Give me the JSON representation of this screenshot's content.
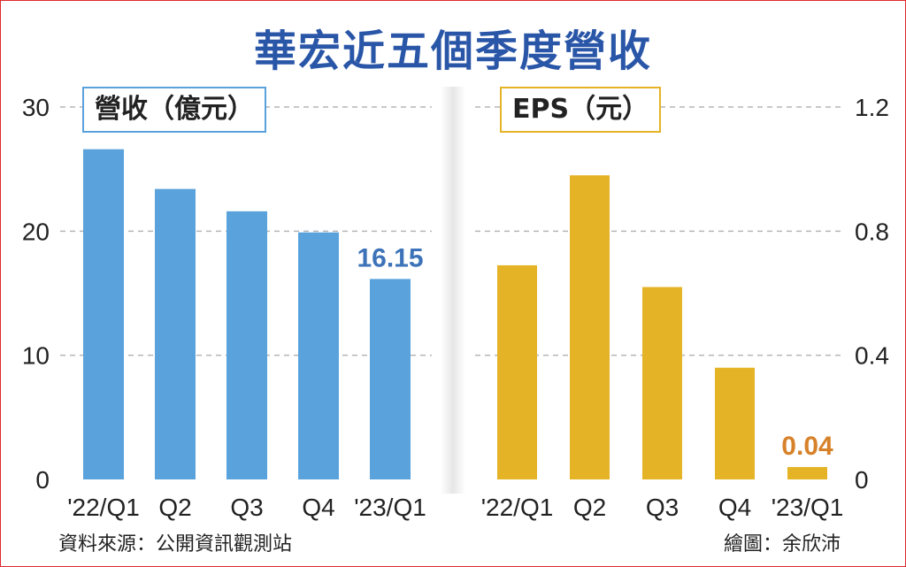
{
  "title": "華宏近五個季度營收",
  "footer": {
    "source": "資料來源：公開資訊觀測站",
    "credit": "繪圖：余欣沛"
  },
  "colors": {
    "title": "#2a56a8",
    "revenue_bar": "#5aa2dc",
    "eps_bar": "#e5b326",
    "revenue_label": "#3c72b8",
    "eps_label": "#d7822a",
    "frame": "#e0292e"
  },
  "chart_data": [
    {
      "type": "bar",
      "unit_label": "營收（億元）",
      "categories": [
        "'22/Q1",
        "Q2",
        "Q3",
        "Q4",
        "'23/Q1"
      ],
      "values": [
        26.6,
        23.4,
        21.6,
        19.9,
        16.15
      ],
      "ylim": [
        0,
        30
      ],
      "yticks": [
        "0",
        "10",
        "20",
        "30"
      ],
      "ytick_values": [
        0,
        10,
        20,
        30
      ],
      "axis_side": "left",
      "grid": true,
      "data_labels": [
        {
          "index": 4,
          "text": "16.15"
        }
      ]
    },
    {
      "type": "bar",
      "unit_label": "EPS（元）",
      "categories": [
        "'22/Q1",
        "Q2",
        "Q3",
        "Q4",
        "'23/Q1"
      ],
      "values": [
        0.69,
        0.98,
        0.62,
        0.36,
        0.04
      ],
      "ylim": [
        0,
        1.2
      ],
      "yticks": [
        "0",
        "0.4",
        "0.8",
        "1.2"
      ],
      "ytick_values": [
        0,
        0.4,
        0.8,
        1.2
      ],
      "axis_side": "right",
      "grid": true,
      "data_labels": [
        {
          "index": 4,
          "text": "0.04"
        }
      ]
    }
  ]
}
